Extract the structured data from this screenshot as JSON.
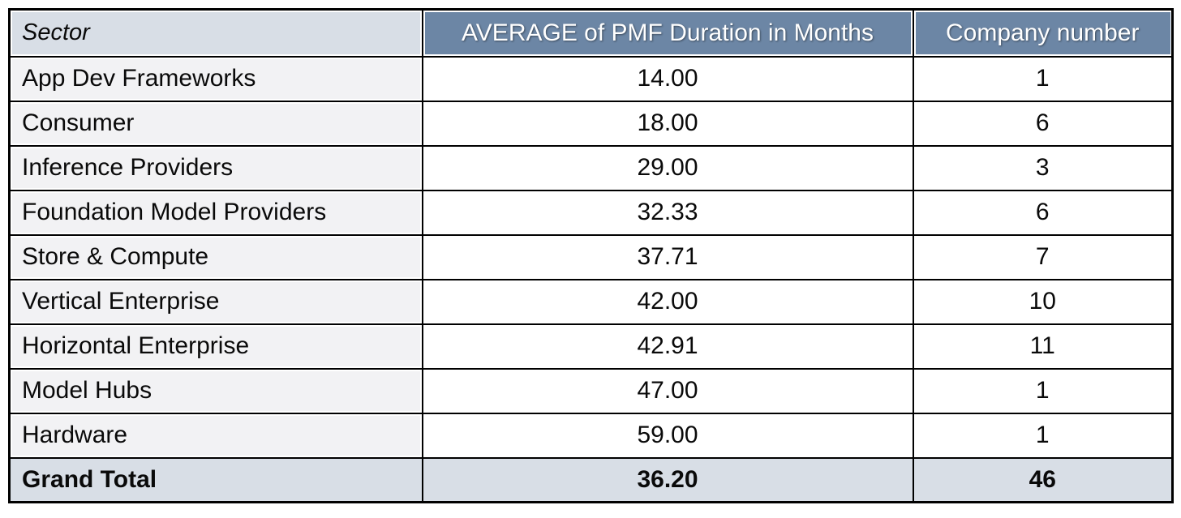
{
  "chart_data": {
    "type": "table",
    "columns": [
      "Sector",
      "AVERAGE of PMF Duration in Months",
      "Company number"
    ],
    "rows": [
      [
        "App Dev Frameworks",
        14.0,
        1
      ],
      [
        "Consumer",
        18.0,
        6
      ],
      [
        "Inference Providers",
        29.0,
        3
      ],
      [
        "Foundation Model Providers",
        32.33,
        6
      ],
      [
        "Store & Compute",
        37.71,
        7
      ],
      [
        "Vertical Enterprise",
        42.0,
        10
      ],
      [
        "Horizontal Enterprise",
        42.91,
        11
      ],
      [
        "Model Hubs",
        47.0,
        1
      ],
      [
        "Hardware",
        59.0,
        1
      ]
    ],
    "total_row": [
      "Grand Total",
      36.2,
      46
    ]
  },
  "table": {
    "headers": {
      "sector": "Sector",
      "avg": "AVERAGE of PMF Duration in Months",
      "count": "Company number"
    },
    "rows": [
      {
        "sector": "App Dev Frameworks",
        "avg": "14.00",
        "count": "1"
      },
      {
        "sector": "Consumer",
        "avg": "18.00",
        "count": "6"
      },
      {
        "sector": "Inference Providers",
        "avg": "29.00",
        "count": "3"
      },
      {
        "sector": "Foundation Model Providers",
        "avg": "32.33",
        "count": "6"
      },
      {
        "sector": "Store & Compute",
        "avg": "37.71",
        "count": "7"
      },
      {
        "sector": "Vertical Enterprise",
        "avg": "42.00",
        "count": "10"
      },
      {
        "sector": "Horizontal Enterprise",
        "avg": "42.91",
        "count": "11"
      },
      {
        "sector": "Model Hubs",
        "avg": "47.00",
        "count": "1"
      },
      {
        "sector": "Hardware",
        "avg": "59.00",
        "count": "1"
      }
    ],
    "total": {
      "sector": "Grand Total",
      "avg": "36.20",
      "count": "46"
    }
  },
  "colors": {
    "header_background": "#6c86a5",
    "header_text": "#ffffff",
    "accent_fill": "#d8dee6",
    "row_label_fill": "#f2f2f4",
    "border": "#000000",
    "page_background": "#ffffff"
  }
}
